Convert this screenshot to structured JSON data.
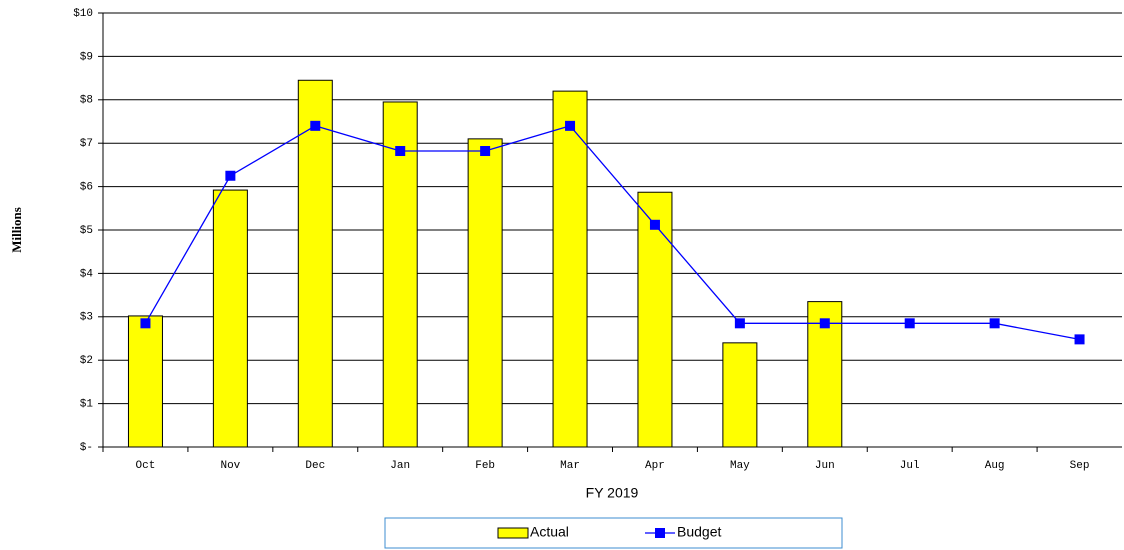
{
  "chart_data": {
    "type": "bar-line",
    "y_axis_label": "Millions",
    "x_axis_label": "FY 2019",
    "categories": [
      "Oct",
      "Nov",
      "Dec",
      "Jan",
      "Feb",
      "Mar",
      "Apr",
      "May",
      "Jun",
      "Jul",
      "Aug",
      "Sep"
    ],
    "series": [
      {
        "name": "Actual",
        "kind": "bar",
        "color": "#ffff00",
        "values": [
          3.02,
          5.92,
          8.45,
          7.95,
          7.1,
          8.2,
          5.87,
          2.4,
          3.35,
          null,
          null,
          null
        ]
      },
      {
        "name": "Budget",
        "kind": "line",
        "color": "#0000ff",
        "values": [
          2.85,
          6.25,
          7.4,
          6.82,
          6.82,
          7.4,
          5.12,
          2.85,
          2.85,
          2.85,
          2.85,
          2.48
        ]
      }
    ],
    "ylim": [
      0,
      10
    ],
    "yticks": [
      {
        "value": 0,
        "label": "$-"
      },
      {
        "value": 1,
        "label": "$1"
      },
      {
        "value": 2,
        "label": "$2"
      },
      {
        "value": 3,
        "label": "$3"
      },
      {
        "value": 4,
        "label": "$4"
      },
      {
        "value": 5,
        "label": "$5"
      },
      {
        "value": 6,
        "label": "$6"
      },
      {
        "value": 7,
        "label": "$7"
      },
      {
        "value": 8,
        "label": "$8"
      },
      {
        "value": 9,
        "label": "$9"
      },
      {
        "value": 10,
        "label": "$10"
      }
    ],
    "grid": true,
    "legend": "bottom"
  }
}
